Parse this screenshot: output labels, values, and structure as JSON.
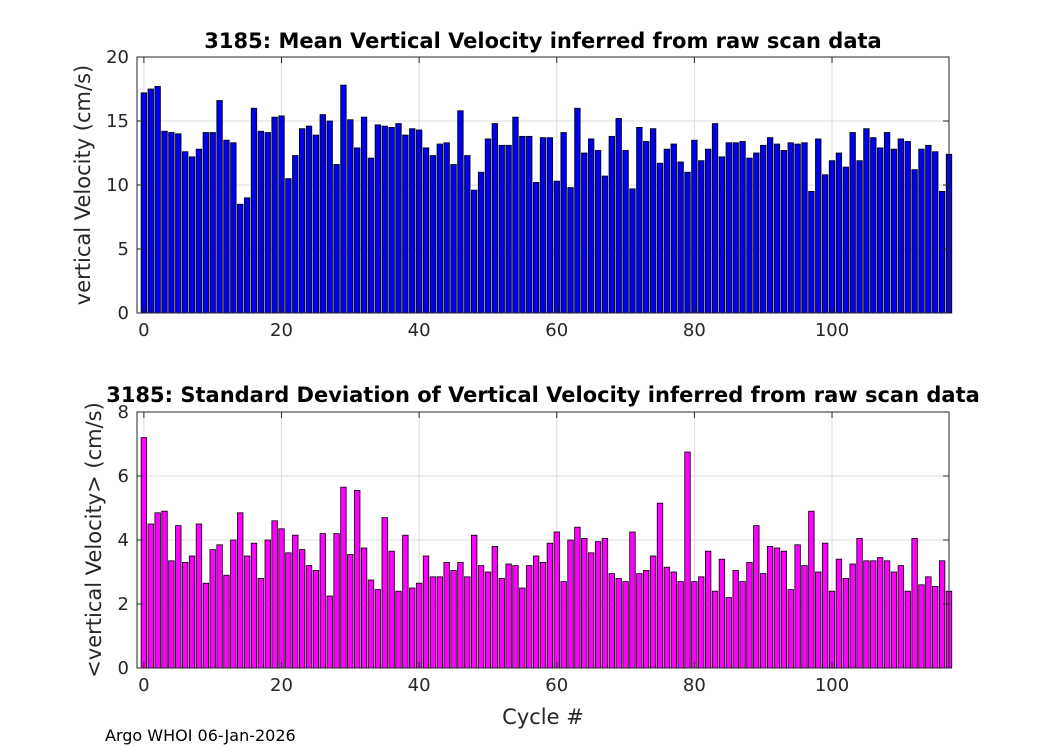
{
  "chart_data": [
    {
      "type": "bar",
      "title": "3185: Mean Vertical Velocity inferred from raw scan data",
      "xlabel": "",
      "ylabel": "vertical Velocity (cm/s)",
      "xlim": [
        -1,
        117
      ],
      "ylim": [
        0,
        20
      ],
      "xticks": [
        0,
        20,
        40,
        60,
        80,
        100
      ],
      "yticks": [
        0,
        5,
        10,
        15,
        20
      ],
      "grid": true,
      "bar_color": "#0000ee",
      "x_start": 0,
      "values": [
        17.2,
        17.5,
        17.7,
        14.2,
        14.1,
        14.0,
        12.6,
        12.2,
        12.8,
        14.1,
        14.1,
        16.6,
        13.5,
        13.3,
        8.5,
        9.0,
        16.0,
        14.2,
        14.1,
        15.3,
        15.4,
        10.5,
        12.3,
        14.4,
        14.6,
        13.9,
        15.5,
        15.0,
        11.6,
        17.8,
        15.1,
        12.9,
        15.3,
        12.1,
        14.7,
        14.6,
        14.5,
        14.8,
        13.9,
        14.4,
        14.3,
        12.9,
        12.3,
        13.2,
        13.3,
        11.6,
        15.8,
        12.3,
        9.6,
        11.0,
        13.6,
        14.8,
        13.1,
        13.1,
        15.3,
        13.8,
        13.8,
        10.2,
        13.7,
        13.7,
        10.3,
        14.1,
        9.8,
        16.0,
        12.5,
        13.6,
        12.7,
        10.7,
        13.8,
        15.2,
        12.7,
        9.7,
        14.5,
        13.4,
        14.4,
        11.7,
        12.8,
        13.2,
        11.8,
        11.0,
        13.5,
        11.9,
        12.8,
        14.8,
        12.2,
        13.3,
        13.3,
        13.4,
        12.1,
        12.5,
        13.1,
        13.7,
        13.2,
        12.7,
        13.3,
        13.2,
        13.3,
        9.5,
        13.6,
        10.8,
        11.9,
        12.5,
        11.4,
        14.1,
        11.9,
        14.4,
        13.7,
        12.9,
        14.1,
        12.8,
        13.6,
        13.4,
        11.2,
        12.8,
        13.1,
        12.6,
        9.5,
        12.4
      ]
    },
    {
      "type": "bar",
      "title": "3185: Standard Deviation of Vertical Velocity inferred from raw scan data",
      "xlabel": "Cycle #",
      "ylabel": "<vertical Velocity> (cm/s)",
      "xlim": [
        -1,
        117
      ],
      "ylim": [
        0,
        8
      ],
      "xticks": [
        0,
        20,
        40,
        60,
        80,
        100
      ],
      "yticks": [
        0,
        2,
        4,
        6,
        8
      ],
      "grid": true,
      "bar_color": "#ff00ff",
      "x_start": 0,
      "values": [
        7.2,
        4.5,
        4.85,
        4.9,
        3.35,
        4.45,
        3.3,
        3.5,
        4.5,
        2.65,
        3.7,
        3.85,
        2.9,
        4.0,
        4.85,
        3.5,
        3.9,
        2.8,
        4.0,
        4.6,
        4.35,
        3.6,
        4.15,
        3.7,
        3.2,
        3.05,
        4.2,
        2.25,
        4.2,
        5.65,
        3.55,
        5.55,
        3.75,
        2.75,
        2.45,
        4.7,
        3.65,
        2.4,
        4.15,
        2.5,
        2.65,
        3.5,
        2.85,
        2.85,
        3.3,
        3.05,
        3.3,
        2.85,
        4.15,
        3.2,
        3.0,
        3.8,
        2.8,
        3.25,
        3.2,
        2.5,
        3.2,
        3.5,
        3.3,
        3.9,
        4.25,
        2.7,
        4.0,
        4.4,
        4.05,
        3.6,
        3.95,
        4.05,
        2.95,
        2.8,
        2.7,
        4.25,
        2.95,
        3.05,
        3.5,
        5.15,
        3.15,
        3.0,
        2.7,
        6.75,
        2.7,
        2.85,
        3.65,
        2.4,
        3.4,
        2.2,
        3.05,
        2.7,
        3.3,
        4.45,
        2.95,
        3.8,
        3.75,
        3.65,
        2.45,
        3.85,
        3.2,
        4.9,
        3.0,
        3.9,
        2.4,
        3.4,
        2.8,
        3.25,
        4.05,
        3.35,
        3.35,
        3.45,
        3.35,
        3.0,
        3.2,
        2.4,
        4.05,
        2.6,
        2.85,
        2.55,
        3.35,
        2.4
      ]
    }
  ],
  "footer": "Argo WHOI 06-Jan-2026"
}
